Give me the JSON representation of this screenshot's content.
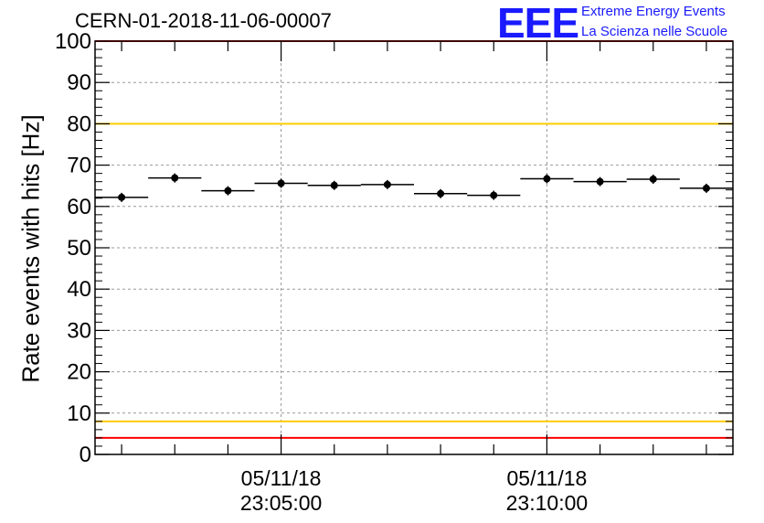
{
  "title": "CERN-01-2018-11-06-00007",
  "logo": {
    "mark": "EEE",
    "line1": "Extreme Energy Events",
    "line2": "La Scienza nelle Scuole",
    "color": "#1a1aff"
  },
  "chart_data": {
    "type": "scatter",
    "title": "CERN-01-2018-11-06-00007",
    "ylabel": "Rate events with hits [Hz]",
    "xlabel": "",
    "ylim": [
      0,
      100
    ],
    "xlim": [
      "05/11/18 23:01:30",
      "05/11/18 23:13:30"
    ],
    "grid": true,
    "y_ticks": [
      0,
      10,
      20,
      30,
      40,
      50,
      60,
      70,
      80,
      90,
      100
    ],
    "x_ticks": [
      {
        "date": "05/11/18",
        "time": "23:05:00"
      },
      {
        "date": "05/11/18",
        "time": "23:10:00"
      }
    ],
    "bin_width_min": 1,
    "series": [
      {
        "x": [
          "23:02:00",
          "23:03:00",
          "23:04:00",
          "23:05:00",
          "23:06:00",
          "23:07:00",
          "23:08:00",
          "23:09:00",
          "23:10:00",
          "23:11:00",
          "23:12:00",
          "23:13:00"
        ],
        "values": [
          62.2,
          66.9,
          63.8,
          65.6,
          65.1,
          65.3,
          63.1,
          62.7,
          66.7,
          66.0,
          66.6,
          64.4
        ],
        "color": "#000000"
      }
    ],
    "reference_lines": [
      {
        "y": 100,
        "color": "#ff0000"
      },
      {
        "y": 80,
        "color": "#ffcc00"
      },
      {
        "y": 8,
        "color": "#ffcc00"
      },
      {
        "y": 4,
        "color": "#ff0000"
      }
    ]
  }
}
